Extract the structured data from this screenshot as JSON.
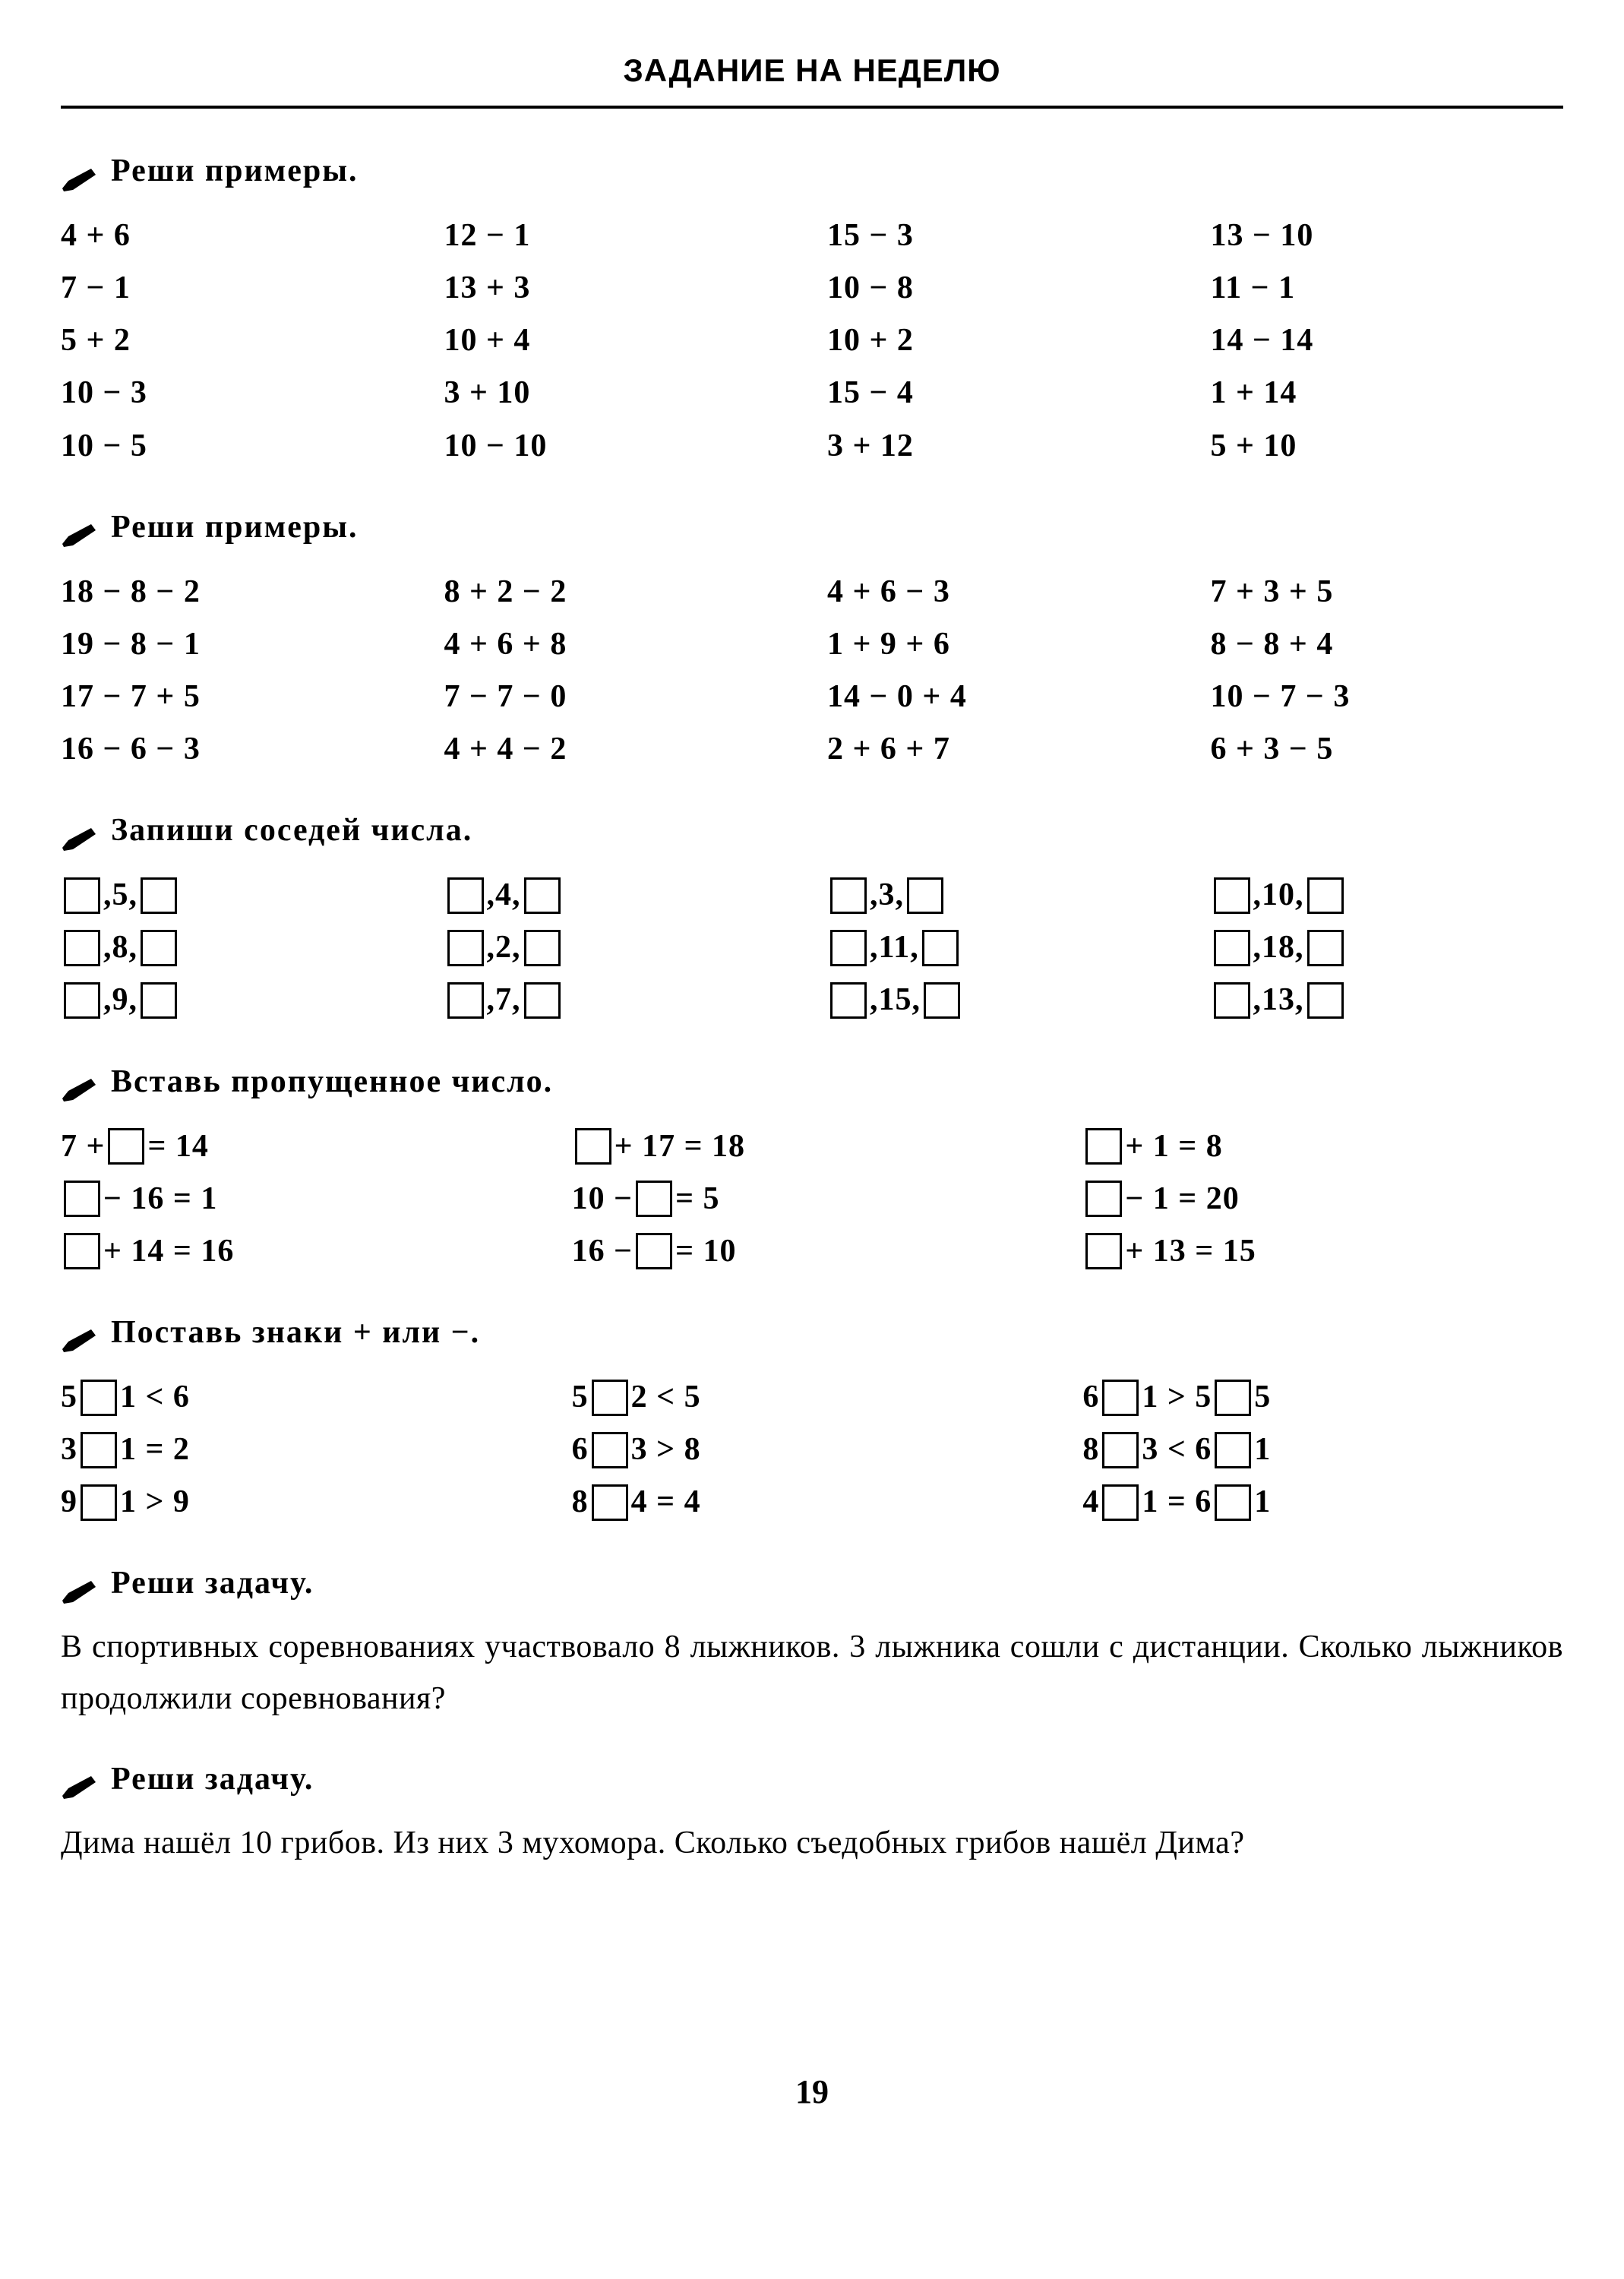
{
  "header": "ЗАДАНИЕ НА НЕДЕЛЮ",
  "page_number": "19",
  "sections": {
    "s1": {
      "title": "Реши примеры.",
      "cols": [
        [
          "4 + 6",
          "7 − 1",
          "5 + 2",
          "10 − 3",
          "10 − 5"
        ],
        [
          "12 − 1",
          "13 + 3",
          "10 + 4",
          "3 + 10",
          "10 − 10"
        ],
        [
          "15 − 3",
          "10 − 8",
          "10 + 2",
          "15 − 4",
          "3 + 12"
        ],
        [
          "13 − 10",
          "11 − 1",
          "14 − 14",
          "1 + 14",
          "5 + 10"
        ]
      ]
    },
    "s2": {
      "title": "Реши примеры.",
      "cols": [
        [
          "18 − 8 − 2",
          "19 − 8 − 1",
          "17 − 7 + 5",
          "16 − 6 − 3"
        ],
        [
          "8 + 2 − 2",
          "4 + 6 + 8",
          "7 − 7 − 0",
          "4 + 4 − 2"
        ],
        [
          "4 + 6 − 3",
          "1 + 9 + 6",
          "14 − 0 + 4",
          "2 + 6 + 7"
        ],
        [
          "7 + 3 + 5",
          "8 − 8 + 4",
          "10 − 7 − 3",
          "6 + 3 − 5"
        ]
      ]
    },
    "s3": {
      "title": "Запиши соседей числа.",
      "cols": [
        [
          "5",
          "8",
          "9"
        ],
        [
          "4",
          "2",
          "7"
        ],
        [
          "3",
          "11",
          "15"
        ],
        [
          "10",
          "18",
          "13"
        ]
      ]
    },
    "s4": {
      "title": "Вставь пропущенное число.",
      "cols": [
        [
          [
            "7 + ",
            " = 14"
          ],
          [
            "",
            " − 16 = 1"
          ],
          [
            "",
            " + 14 = 16"
          ]
        ],
        [
          [
            "",
            " + 17 = 18"
          ],
          [
            "10 − ",
            " = 5"
          ],
          [
            "16 − ",
            " = 10"
          ]
        ],
        [
          [
            "",
            " + 1 = 8"
          ],
          [
            "",
            " − 1 = 20"
          ],
          [
            "",
            " + 13 = 15"
          ]
        ]
      ]
    },
    "s5": {
      "title": "Поставь знаки + или −.",
      "cols": [
        [
          [
            "5 ",
            " 1 < 6"
          ],
          [
            "3 ",
            " 1 = 2"
          ],
          [
            "9 ",
            " 1 > 9"
          ]
        ],
        [
          [
            "5 ",
            " 2 < 5"
          ],
          [
            "6 ",
            " 3 > 8"
          ],
          [
            "8 ",
            " 4 = 4"
          ]
        ],
        [
          [
            "6 ",
            " 1 > 5 ",
            " 5"
          ],
          [
            "8 ",
            " 3 < 6 ",
            " 1"
          ],
          [
            "4 ",
            " 1 = 6 ",
            " 1"
          ]
        ]
      ]
    },
    "s6": {
      "title": "Реши задачу.",
      "text": "В спортивных соревнованиях участвовало 8 лыжников. 3 лыжника сошли с дистанции. Сколько лыжников продолжили соревнования?"
    },
    "s7": {
      "title": "Реши задачу.",
      "text": "Дима нашёл 10 грибов. Из них 3 мухомора. Сколько съедобных грибов нашёл Дима?"
    }
  }
}
